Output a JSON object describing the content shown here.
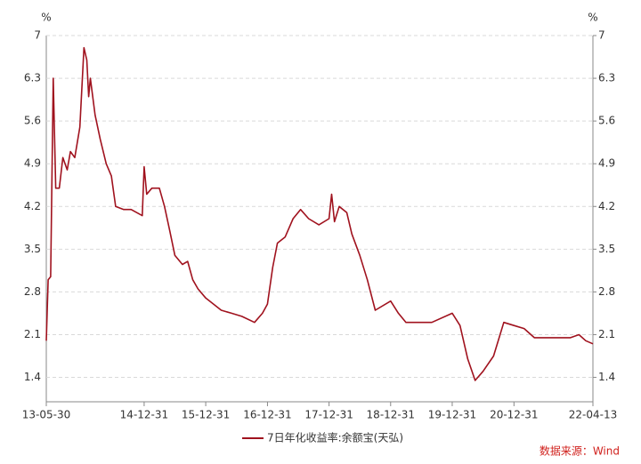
{
  "chart_data": {
    "type": "line",
    "y_label": "%",
    "y2_label": "%",
    "x": [
      "13-05-30",
      "13-06-10",
      "13-06-25",
      "13-07-10",
      "13-07-25",
      "13-08-15",
      "13-09-05",
      "13-10-01",
      "13-10-20",
      "13-11-15",
      "13-12-15",
      "14-01-08",
      "14-01-25",
      "14-02-05",
      "14-02-15",
      "14-03-15",
      "14-04-15",
      "14-05-20",
      "14-06-20",
      "14-07-15",
      "14-09-01",
      "14-10-15",
      "14-12-20",
      "14-12-31",
      "15-01-15",
      "15-02-15",
      "15-03-31",
      "15-05-01",
      "15-06-01",
      "15-07-01",
      "15-08-15",
      "15-09-15",
      "15-10-15",
      "15-11-15",
      "15-12-31",
      "16-02-15",
      "16-04-01",
      "16-06-01",
      "16-08-01",
      "16-10-15",
      "16-12-01",
      "16-12-31",
      "17-01-31",
      "17-02-28",
      "17-04-15",
      "17-06-01",
      "17-07-15",
      "17-09-01",
      "17-11-01",
      "17-12-31",
      "18-01-15",
      "18-02-01",
      "18-03-01",
      "18-04-15",
      "18-05-15",
      "18-07-01",
      "18-08-15",
      "18-10-01",
      "18-12-31",
      "19-02-15",
      "19-04-01",
      "19-06-01",
      "19-09-01",
      "19-12-31",
      "20-02-15",
      "20-04-01",
      "20-05-15",
      "20-07-01",
      "20-09-01",
      "20-11-01",
      "20-12-31",
      "21-03-01",
      "21-05-01",
      "21-09-01",
      "21-12-01",
      "22-01-20",
      "22-03-01",
      "22-04-13"
    ],
    "series": [
      {
        "name": "7日年化收益率:余额宝(天弘)",
        "color": "#a0121e",
        "values": [
          2.0,
          3.0,
          3.05,
          6.3,
          4.5,
          4.5,
          5.0,
          4.8,
          5.1,
          5.0,
          5.5,
          6.8,
          6.6,
          6.0,
          6.3,
          5.7,
          5.3,
          4.9,
          4.7,
          4.2,
          4.15,
          4.15,
          4.05,
          4.85,
          4.4,
          4.5,
          4.5,
          4.2,
          3.8,
          3.4,
          3.25,
          3.3,
          3.0,
          2.85,
          2.7,
          2.6,
          2.5,
          2.45,
          2.4,
          2.3,
          2.45,
          2.6,
          3.2,
          3.6,
          3.7,
          4.0,
          4.15,
          4.0,
          3.9,
          4.0,
          4.4,
          3.95,
          4.2,
          4.1,
          3.75,
          3.4,
          3.0,
          2.5,
          2.65,
          2.45,
          2.3,
          2.3,
          2.3,
          2.45,
          2.25,
          1.7,
          1.35,
          1.5,
          1.75,
          2.3,
          2.25,
          2.2,
          2.05,
          2.05,
          2.05,
          2.1,
          2.0,
          1.95
        ]
      }
    ],
    "xticks": [
      "13-05-30",
      "14-12-31",
      "15-12-31",
      "16-12-31",
      "17-12-31",
      "18-12-31",
      "19-12-31",
      "20-12-31",
      "22-04-13"
    ],
    "ylim": [
      1.0,
      7
    ],
    "yticks": [
      1.4,
      2.1,
      2.8,
      3.5,
      4.2,
      4.9,
      5.6,
      6.3,
      7
    ],
    "y2lim": [
      1.0,
      7
    ],
    "y2ticks": [
      1.4,
      2.1,
      2.8,
      3.5,
      4.2,
      4.9,
      5.6,
      6.3,
      7
    ],
    "grid": true,
    "legend": "bottom",
    "source": "数据来源：Wind"
  }
}
